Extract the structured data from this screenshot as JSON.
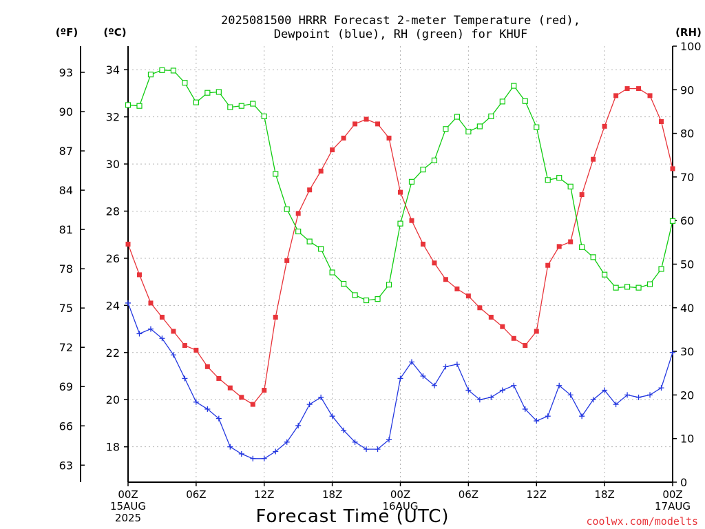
{
  "chart_data": {
    "type": "line",
    "title": "2025081500 HRRR Forecast 2-meter Temperature (red),",
    "title_line2": "Dewpoint (blue), RH (green) for KHUF",
    "xlabel": "Forecast Time (UTC)",
    "credit": "coolwx.com/modelts",
    "units": {
      "fahrenheit": "(ºF)",
      "celsius": "(ºC)",
      "rh": "(RH)"
    },
    "left_axis_c": {
      "ylim": [
        16.5,
        35.0
      ],
      "ticks": [
        "18",
        "20",
        "22",
        "24",
        "26",
        "28",
        "30",
        "32",
        "34"
      ]
    },
    "left_axis_f": {
      "ticks": [
        "63",
        "66",
        "69",
        "72",
        "75",
        "78",
        "81",
        "84",
        "87",
        "90",
        "93"
      ]
    },
    "right_axis_rh": {
      "ylim": [
        0,
        100
      ],
      "ticks": [
        "0",
        "10",
        "20",
        "30",
        "40",
        "50",
        "60",
        "70",
        "80",
        "90",
        "100"
      ]
    },
    "x_range_hours": [
      0,
      48
    ],
    "x_ticks": [
      {
        "top": "00Z",
        "line2": "15AUG",
        "line3": "2025"
      },
      {
        "top": "06Z",
        "line2": "",
        "line3": ""
      },
      {
        "top": "12Z",
        "line2": "",
        "line3": ""
      },
      {
        "top": "18Z",
        "line2": "",
        "line3": ""
      },
      {
        "top": "00Z",
        "line2": "16AUG",
        "line3": ""
      },
      {
        "top": "06Z",
        "line2": "",
        "line3": ""
      },
      {
        "top": "12Z",
        "line2": "",
        "line3": ""
      },
      {
        "top": "18Z",
        "line2": "",
        "line3": ""
      },
      {
        "top": "00Z",
        "line2": "17AUG",
        "line3": ""
      }
    ],
    "colors": {
      "temperature": "#e8343a",
      "dewpoint": "#2438e0",
      "rh": "#10cc10"
    },
    "grid": true,
    "series": [
      {
        "key": "temperature",
        "axis": "celsius",
        "values": [
          26.6,
          25.3,
          24.1,
          23.5,
          22.9,
          22.3,
          22.1,
          21.4,
          20.9,
          20.5,
          20.1,
          19.8,
          20.4,
          23.5,
          25.9,
          27.9,
          28.9,
          29.7,
          30.6,
          31.1,
          31.7,
          31.9,
          31.7,
          31.1,
          28.8,
          27.6,
          26.6,
          25.8,
          25.1,
          24.7,
          24.4,
          23.9,
          23.5,
          23.1,
          22.6,
          22.3,
          22.9,
          25.7,
          26.5,
          26.7,
          28.7,
          30.2,
          31.6,
          32.9,
          33.2,
          33.2,
          32.9,
          31.8,
          29.8
        ]
      },
      {
        "key": "dewpoint",
        "axis": "celsius",
        "values": [
          24.1,
          22.8,
          23.0,
          22.6,
          21.9,
          20.9,
          19.9,
          19.6,
          19.2,
          18.0,
          17.7,
          17.5,
          17.5,
          17.8,
          18.2,
          18.9,
          19.8,
          20.1,
          19.3,
          18.7,
          18.2,
          17.9,
          17.9,
          18.3,
          20.9,
          21.6,
          21.0,
          20.6,
          21.4,
          21.5,
          20.4,
          20.0,
          20.1,
          20.4,
          20.6,
          19.6,
          19.1,
          19.3,
          20.6,
          20.2,
          19.3,
          20.0,
          20.4,
          19.8,
          20.2,
          20.1,
          20.2,
          20.5,
          22.0
        ]
      },
      {
        "key": "rh",
        "axis": "rh",
        "values": [
          86.5,
          86.3,
          93.5,
          94.5,
          94.4,
          91.6,
          87.1,
          89.3,
          89.5,
          86.0,
          86.3,
          86.8,
          83.9,
          70.7,
          62.6,
          57.5,
          55.2,
          53.5,
          48.1,
          45.5,
          42.9,
          41.7,
          42.0,
          45.3,
          59.3,
          68.9,
          71.7,
          73.8,
          81.0,
          83.8,
          80.4,
          81.6,
          83.9,
          87.3,
          90.9,
          87.4,
          81.4,
          69.3,
          69.8,
          67.8,
          53.9,
          51.6,
          47.6,
          44.6,
          44.8,
          44.6,
          45.4,
          48.9,
          59.9
        ]
      }
    ]
  }
}
